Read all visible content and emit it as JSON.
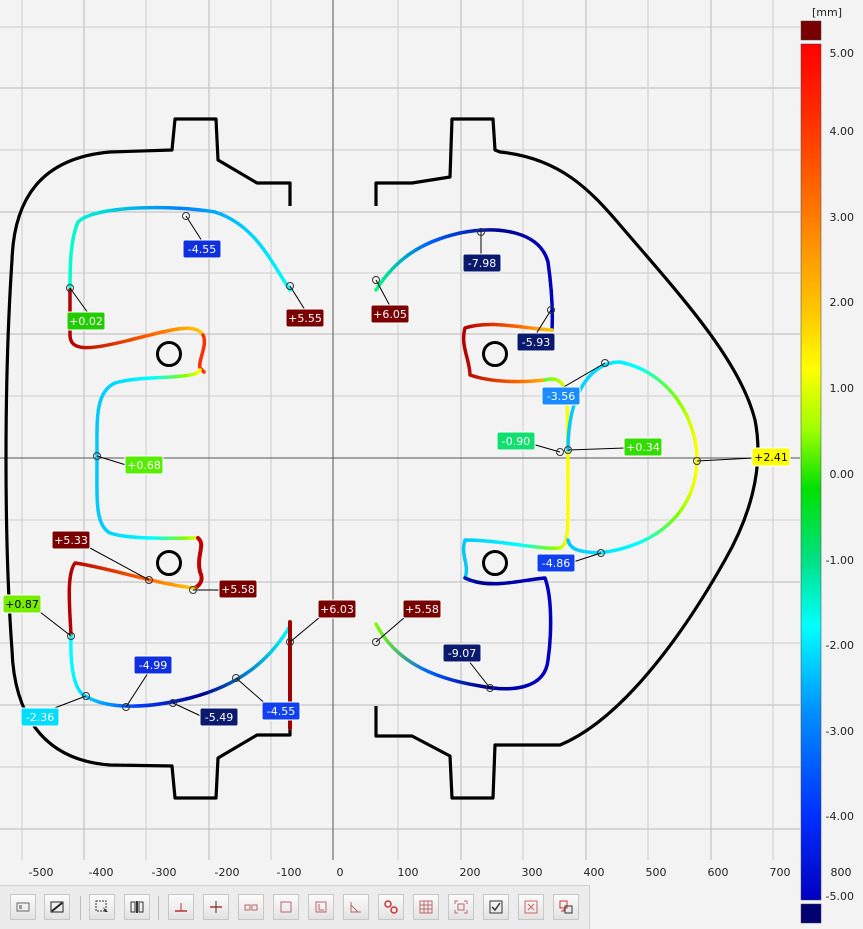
{
  "colorbar": {
    "unit": "[mm]",
    "labels": [
      "5.00",
      "4.00",
      "3.00",
      "2.00",
      "1.00",
      "0.00",
      "-1.00",
      "-2.00",
      "-3.00",
      "-4.00",
      "-5.00"
    ],
    "gradient": [
      "#7a0000",
      "#ff0000",
      "#ff6a00",
      "#ffd200",
      "#ffff00",
      "#7dff00",
      "#00e000",
      "#00e0a0",
      "#00ffff",
      "#00a0ff",
      "#0040ff",
      "#0000d0",
      "#00007a"
    ]
  },
  "axis": {
    "x_ticks": [
      "-500",
      "-400",
      "-300",
      "-200",
      "-100",
      "0",
      "100",
      "200",
      "300",
      "400",
      "500",
      "600",
      "700",
      "800"
    ]
  },
  "deviations": [
    {
      "value": "-4.55",
      "color": "#1030e0",
      "text_color": "#ffffff"
    },
    {
      "value": "+5.55",
      "color": "#7a0000",
      "text_color": "#ffffff"
    },
    {
      "value": "+0.02",
      "color": "#22cc00",
      "text_color": "#ffffff"
    },
    {
      "value": "+6.05",
      "color": "#7a0000",
      "text_color": "#ffffff"
    },
    {
      "value": "-7.98",
      "color": "#0b1a6e",
      "text_color": "#ffffff"
    },
    {
      "value": "-5.93",
      "color": "#0b1a6e",
      "text_color": "#ffffff"
    },
    {
      "value": "-3.56",
      "color": "#1a8cff",
      "text_color": "#ffffff"
    },
    {
      "value": "-0.90",
      "color": "#10e070",
      "text_color": "#ffffff"
    },
    {
      "value": "+0.34",
      "color": "#33dd00",
      "text_color": "#ffffff"
    },
    {
      "value": "+2.41",
      "color": "#ffff00",
      "text_color": "#000000"
    },
    {
      "value": "+0.68",
      "color": "#55ee00",
      "text_color": "#ffffff"
    },
    {
      "value": "+5.33",
      "color": "#7a0000",
      "text_color": "#ffffff"
    },
    {
      "value": "+5.58",
      "color": "#7a0000",
      "text_color": "#ffffff"
    },
    {
      "value": "-4.86",
      "color": "#1040f0",
      "text_color": "#ffffff"
    },
    {
      "value": "+0.87",
      "color": "#77ee00",
      "text_color": "#000000"
    },
    {
      "value": "+6.03",
      "color": "#7a0000",
      "text_color": "#ffffff"
    },
    {
      "value": "+5.58",
      "color": "#7a0000",
      "text_color": "#ffffff"
    },
    {
      "value": "-4.99",
      "color": "#1030e0",
      "text_color": "#ffffff"
    },
    {
      "value": "-9.07",
      "color": "#0b1a6e",
      "text_color": "#ffffff"
    },
    {
      "value": "-2.36",
      "color": "#00ddff",
      "text_color": "#ffffff"
    },
    {
      "value": "-5.49",
      "color": "#0b1a6e",
      "text_color": "#ffffff"
    },
    {
      "value": "-4.55",
      "color": "#1040f0",
      "text_color": "#ffffff"
    }
  ],
  "toolbar": {
    "buttons": [
      {
        "name": "view-mode-icon"
      },
      {
        "name": "toggle-hatch-icon"
      },
      {
        "name": "select-region-icon"
      },
      {
        "name": "split-view-icon"
      },
      {
        "name": "point-deviation-icon"
      },
      {
        "name": "edge-deviation-icon"
      },
      {
        "name": "gap-flush-icon"
      },
      {
        "name": "rectangle-icon"
      },
      {
        "name": "frame-icon"
      },
      {
        "name": "angle-icon"
      },
      {
        "name": "circle-pair-icon"
      },
      {
        "name": "grid-icon"
      },
      {
        "name": "fit-view-icon"
      },
      {
        "name": "checkbox-icon"
      },
      {
        "name": "delete-label-icon"
      },
      {
        "name": "transfer-icon"
      }
    ]
  }
}
